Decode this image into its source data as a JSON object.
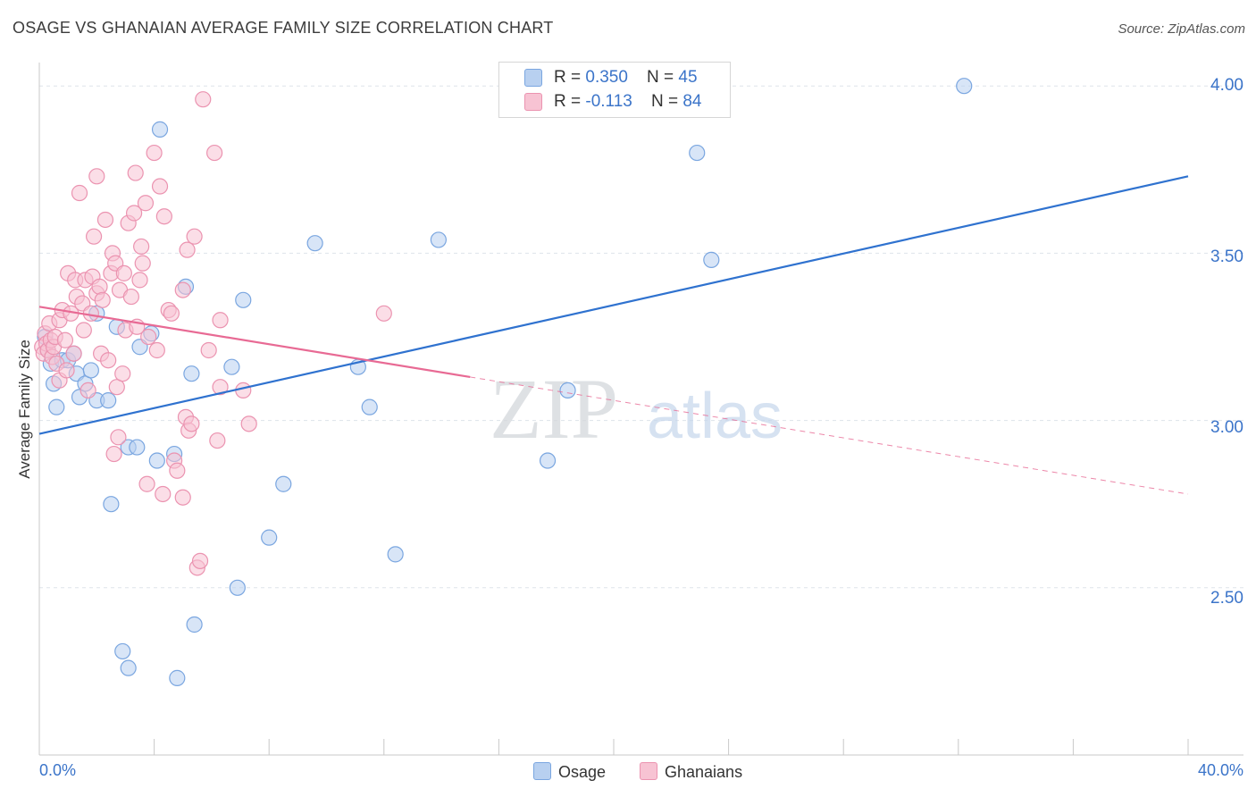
{
  "title": "OSAGE VS GHANAIAN AVERAGE FAMILY SIZE CORRELATION CHART",
  "source": "Source: ZipAtlas.com",
  "watermark": {
    "zip": "ZIP",
    "atlas": "atlas"
  },
  "legend": {
    "osage": {
      "r_label": "R = ",
      "r_value": "0.350",
      "n_label": "N = ",
      "n_value": "45"
    },
    "ghanaians": {
      "r_label": "R = ",
      "r_value": "-0.113",
      "n_label": "N = ",
      "n_value": "84"
    }
  },
  "bottom_legend": {
    "osage": "Osage",
    "ghanaians": "Ghanaians"
  },
  "colors": {
    "osage_fill": "#b8d0f0",
    "osage_stroke": "#7aa6e0",
    "osage_line": "#2f72cf",
    "ghana_fill": "#f7c3d3",
    "ghana_stroke": "#eb93b0",
    "ghana_line": "#e86a94",
    "tick_text": "#3b74c9",
    "grid": "#dde3ea"
  },
  "chart_data": {
    "type": "scatter",
    "title": "OSAGE VS GHANAIAN AVERAGE FAMILY SIZE CORRELATION CHART",
    "xlabel": "",
    "ylabel": "Average Family Size",
    "xlim": [
      0,
      40
    ],
    "ylim": [
      2.0,
      4.07
    ],
    "x_tick_labels": [
      "0.0%",
      "40.0%"
    ],
    "y_ticks": [
      2.5,
      3.0,
      3.5,
      4.0
    ],
    "y_tick_labels": [
      "2.50",
      "3.00",
      "3.50",
      "4.00"
    ],
    "series": [
      {
        "name": "Osage",
        "r": 0.35,
        "n": 45,
        "trend": {
          "x0": 0,
          "y0": 2.96,
          "x1": 40,
          "y1": 3.73
        },
        "points": [
          [
            0.2,
            3.25
          ],
          [
            0.3,
            3.21
          ],
          [
            0.4,
            3.17
          ],
          [
            0.5,
            3.11
          ],
          [
            0.6,
            3.04
          ],
          [
            0.8,
            3.18
          ],
          [
            1.0,
            3.18
          ],
          [
            1.2,
            3.2
          ],
          [
            1.3,
            3.14
          ],
          [
            1.4,
            3.07
          ],
          [
            1.6,
            3.11
          ],
          [
            1.8,
            3.15
          ],
          [
            2.0,
            3.32
          ],
          [
            2.0,
            3.06
          ],
          [
            2.4,
            3.06
          ],
          [
            2.5,
            2.75
          ],
          [
            2.7,
            3.28
          ],
          [
            2.9,
            2.31
          ],
          [
            3.1,
            2.92
          ],
          [
            3.1,
            2.26
          ],
          [
            3.4,
            2.92
          ],
          [
            3.5,
            3.22
          ],
          [
            3.9,
            3.26
          ],
          [
            4.1,
            2.88
          ],
          [
            4.2,
            3.87
          ],
          [
            4.7,
            2.9
          ],
          [
            4.8,
            2.23
          ],
          [
            5.1,
            3.4
          ],
          [
            5.3,
            3.14
          ],
          [
            5.4,
            2.39
          ],
          [
            6.7,
            3.16
          ],
          [
            6.9,
            2.5
          ],
          [
            7.1,
            3.36
          ],
          [
            8.0,
            2.65
          ],
          [
            8.5,
            2.81
          ],
          [
            9.6,
            3.53
          ],
          [
            11.1,
            3.16
          ],
          [
            11.5,
            3.04
          ],
          [
            12.4,
            2.6
          ],
          [
            13.9,
            3.54
          ],
          [
            17.7,
            2.88
          ],
          [
            18.4,
            3.09
          ],
          [
            22.9,
            3.8
          ],
          [
            23.4,
            3.48
          ],
          [
            32.2,
            4.0
          ]
        ]
      },
      {
        "name": "Ghanaians",
        "r": -0.113,
        "n": 84,
        "trend": {
          "x0": 0,
          "y0": 3.34,
          "x1": 15,
          "y1": 3.13
        },
        "trend_extension": {
          "x0": 15,
          "y0": 3.13,
          "x1": 40,
          "y1": 2.78
        },
        "points": [
          [
            0.1,
            3.22
          ],
          [
            0.15,
            3.2
          ],
          [
            0.2,
            3.26
          ],
          [
            0.25,
            3.23
          ],
          [
            0.3,
            3.21
          ],
          [
            0.35,
            3.29
          ],
          [
            0.4,
            3.24
          ],
          [
            0.45,
            3.19
          ],
          [
            0.5,
            3.22
          ],
          [
            0.55,
            3.25
          ],
          [
            0.6,
            3.17
          ],
          [
            0.7,
            3.12
          ],
          [
            0.7,
            3.3
          ],
          [
            0.8,
            3.33
          ],
          [
            0.9,
            3.24
          ],
          [
            0.95,
            3.15
          ],
          [
            1.0,
            3.44
          ],
          [
            1.1,
            3.32
          ],
          [
            1.2,
            3.2
          ],
          [
            1.25,
            3.42
          ],
          [
            1.3,
            3.37
          ],
          [
            1.4,
            3.68
          ],
          [
            1.5,
            3.35
          ],
          [
            1.55,
            3.27
          ],
          [
            1.6,
            3.42
          ],
          [
            1.7,
            3.09
          ],
          [
            1.8,
            3.32
          ],
          [
            1.85,
            3.43
          ],
          [
            1.9,
            3.55
          ],
          [
            2.0,
            3.38
          ],
          [
            2.0,
            3.73
          ],
          [
            2.1,
            3.4
          ],
          [
            2.15,
            3.2
          ],
          [
            2.2,
            3.36
          ],
          [
            2.3,
            3.6
          ],
          [
            2.4,
            3.18
          ],
          [
            2.5,
            3.44
          ],
          [
            2.55,
            3.5
          ],
          [
            2.6,
            2.9
          ],
          [
            2.65,
            3.47
          ],
          [
            2.7,
            3.1
          ],
          [
            2.75,
            2.95
          ],
          [
            2.8,
            3.39
          ],
          [
            2.9,
            3.14
          ],
          [
            2.95,
            3.44
          ],
          [
            3.0,
            3.27
          ],
          [
            3.1,
            3.59
          ],
          [
            3.2,
            3.37
          ],
          [
            3.3,
            3.62
          ],
          [
            3.35,
            3.74
          ],
          [
            3.4,
            3.28
          ],
          [
            3.5,
            3.42
          ],
          [
            3.55,
            3.52
          ],
          [
            3.6,
            3.47
          ],
          [
            3.7,
            3.65
          ],
          [
            3.75,
            2.81
          ],
          [
            3.8,
            3.25
          ],
          [
            4.0,
            3.8
          ],
          [
            4.1,
            3.21
          ],
          [
            4.2,
            3.7
          ],
          [
            4.3,
            2.78
          ],
          [
            4.35,
            3.61
          ],
          [
            4.5,
            3.33
          ],
          [
            4.6,
            3.32
          ],
          [
            4.7,
            2.88
          ],
          [
            4.8,
            2.85
          ],
          [
            5.0,
            3.39
          ],
          [
            5.1,
            3.01
          ],
          [
            5.15,
            3.51
          ],
          [
            5.2,
            2.97
          ],
          [
            5.3,
            2.99
          ],
          [
            5.4,
            3.55
          ],
          [
            5.5,
            2.56
          ],
          [
            5.6,
            2.58
          ],
          [
            5.7,
            3.96
          ],
          [
            5.9,
            3.21
          ],
          [
            6.1,
            3.8
          ],
          [
            6.2,
            2.94
          ],
          [
            6.3,
            3.3
          ],
          [
            6.3,
            3.1
          ],
          [
            7.1,
            3.09
          ],
          [
            7.3,
            2.99
          ],
          [
            12.0,
            3.32
          ],
          [
            5.0,
            2.77
          ]
        ]
      }
    ]
  }
}
